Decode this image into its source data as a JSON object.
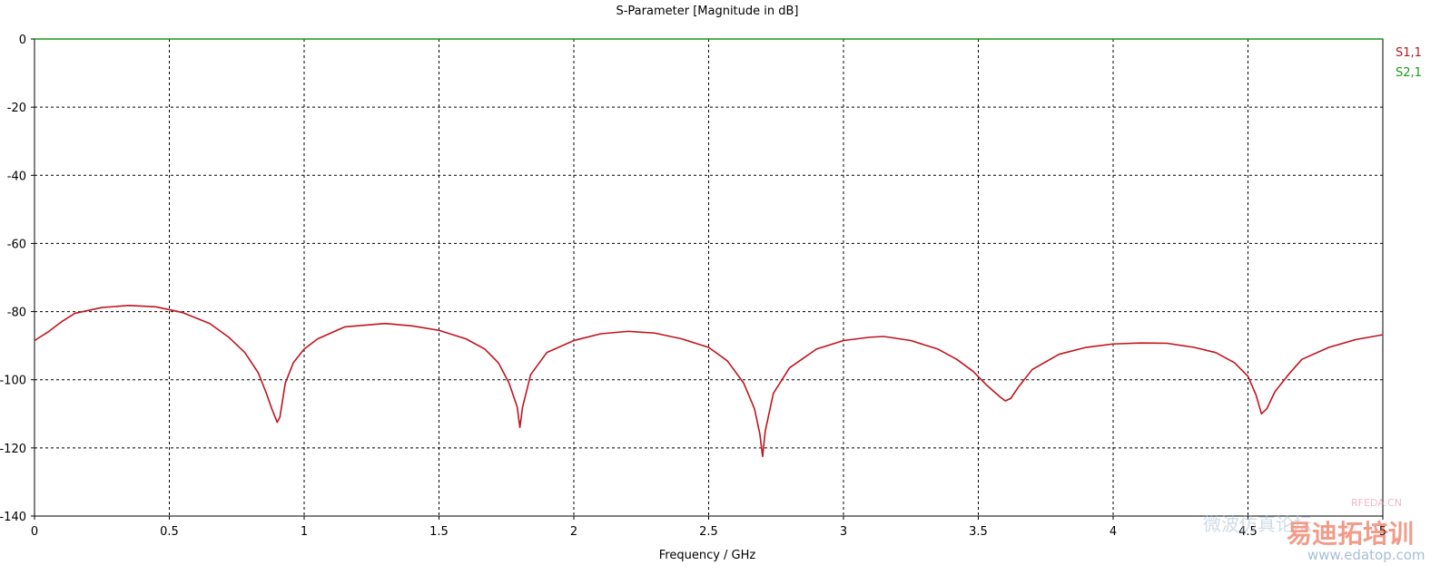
{
  "chart_data": {
    "type": "line",
    "title": "S-Parameter [Magnitude in dB]",
    "xlabel": "Frequency / GHz",
    "ylabel": "",
    "xlim": [
      0,
      5
    ],
    "ylim": [
      -140,
      0
    ],
    "xticks": [
      "0",
      "0.5",
      "1",
      "1.5",
      "2",
      "2.5",
      "3",
      "3.5",
      "4",
      "4.5",
      "5"
    ],
    "xtick_values": [
      0,
      0.5,
      1,
      1.5,
      2,
      2.5,
      3,
      3.5,
      4,
      4.5,
      5
    ],
    "yticks": [
      "0",
      "-20",
      "-40",
      "-60",
      "-80",
      "-100",
      "-120",
      "-140"
    ],
    "ytick_values": [
      0,
      -20,
      -40,
      -60,
      -80,
      -100,
      -120,
      -140
    ],
    "grid": true,
    "legend_position": "right",
    "series": [
      {
        "name": "S1,1",
        "color": "#c0141e",
        "x": [
          0,
          0.05,
          0.1,
          0.15,
          0.25,
          0.35,
          0.45,
          0.55,
          0.65,
          0.72,
          0.78,
          0.83,
          0.86,
          0.88,
          0.9,
          0.91,
          0.93,
          0.96,
          1.0,
          1.05,
          1.15,
          1.3,
          1.4,
          1.5,
          1.6,
          1.67,
          1.72,
          1.76,
          1.79,
          1.8,
          1.81,
          1.84,
          1.9,
          2.0,
          2.1,
          2.2,
          2.3,
          2.4,
          2.5,
          2.57,
          2.63,
          2.67,
          2.69,
          2.7,
          2.71,
          2.74,
          2.8,
          2.9,
          3.0,
          3.1,
          3.15,
          3.25,
          3.35,
          3.42,
          3.48,
          3.53,
          3.58,
          3.6,
          3.62,
          3.65,
          3.7,
          3.8,
          3.9,
          4.0,
          4.1,
          4.2,
          4.3,
          4.38,
          4.45,
          4.5,
          4.53,
          4.55,
          4.57,
          4.6,
          4.65,
          4.7,
          4.8,
          4.9,
          5.0
        ],
        "values": [
          -88.5,
          -86,
          -83,
          -80.5,
          -78.8,
          -78.2,
          -78.6,
          -80.3,
          -83.5,
          -87.5,
          -92,
          -98,
          -104,
          -108.5,
          -112.5,
          -111,
          -101,
          -95,
          -91,
          -88,
          -84.5,
          -83.5,
          -84.2,
          -85.5,
          -88,
          -91,
          -95,
          -101,
          -108,
          -114,
          -108,
          -98.5,
          -92,
          -88.5,
          -86.5,
          -85.8,
          -86.3,
          -88,
          -90.5,
          -94.5,
          -101,
          -108.5,
          -116,
          -122.5,
          -115,
          -104,
          -96.5,
          -91,
          -88.5,
          -87.5,
          -87.3,
          -88.5,
          -91,
          -94,
          -97.5,
          -101.5,
          -105,
          -106.2,
          -105.5,
          -102,
          -97,
          -92.5,
          -90.5,
          -89.5,
          -89.2,
          -89.3,
          -90.5,
          -92,
          -95,
          -99,
          -104.5,
          -110,
          -108.5,
          -103.5,
          -98.5,
          -94,
          -90.5,
          -88.2,
          -86.8
        ]
      },
      {
        "name": "S2,1",
        "color": "#1a9a1a",
        "x": [
          0,
          5
        ],
        "values": [
          0,
          0
        ]
      }
    ]
  },
  "watermark": {
    "text1": "RFEDA.CN",
    "text2": "易迪拓培训",
    "text3": "www.edatop.com",
    "text4": "微波仿真论坛"
  }
}
